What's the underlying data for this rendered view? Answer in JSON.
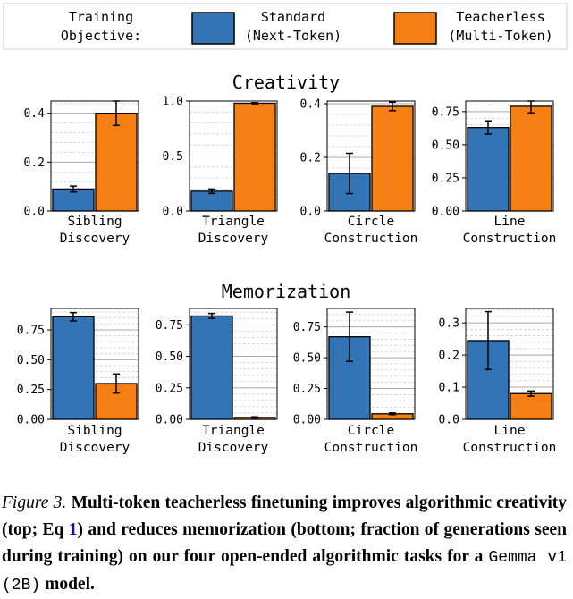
{
  "legend": {
    "label_line1": "Training",
    "label_line2": "Objective:",
    "items": [
      {
        "line1": "Standard",
        "line2": "(Next-Token)",
        "color": "#3274b5"
      },
      {
        "line1": "Teacherless",
        "line2": "(Multi-Token)",
        "color": "#f57f12"
      }
    ]
  },
  "caption": {
    "label": "Figure 3.",
    "text_a": " Multi-token teacherless finetuning improves algorithmic creativity (top; Eq ",
    "eq_ref": "1",
    "text_b": ") and reduces memorization (bottom; fraction of generations seen during training) on our four open-ended algorithmic tasks for a ",
    "model": "Gemma v1 (2B)",
    "text_c": " model."
  },
  "chart_data": [
    {
      "group_title": "Creativity",
      "panels": [
        {
          "type": "bar",
          "category_line1": "Sibling",
          "category_line2": "Discovery",
          "ylim": [
            0,
            0.45
          ],
          "yticks": [
            "0.0",
            "0.2",
            "0.4"
          ],
          "series": [
            {
              "name": "Standard (Next-Token)",
              "value": 0.09,
              "err": 0.012
            },
            {
              "name": "Teacherless (Multi-Token)",
              "value": 0.4,
              "err": 0.05
            }
          ]
        },
        {
          "type": "bar",
          "category_line1": "Triangle",
          "category_line2": "Discovery",
          "ylim": [
            0,
            1.0
          ],
          "yticks": [
            "0.0",
            "0.5",
            "1.0"
          ],
          "series": [
            {
              "name": "Standard (Next-Token)",
              "value": 0.18,
              "err": 0.02
            },
            {
              "name": "Teacherless (Multi-Token)",
              "value": 0.98,
              "err": 0.005
            }
          ]
        },
        {
          "type": "bar",
          "category_line1": "Circle",
          "category_line2": "Construction",
          "ylim": [
            0,
            0.41
          ],
          "yticks": [
            "0.0",
            "0.2",
            "0.4"
          ],
          "series": [
            {
              "name": "Standard (Next-Token)",
              "value": 0.14,
              "err": 0.075
            },
            {
              "name": "Teacherless (Multi-Token)",
              "value": 0.39,
              "err": 0.016
            }
          ]
        },
        {
          "type": "bar",
          "category_line1": "Line",
          "category_line2": "Construction",
          "ylim": [
            0,
            0.83
          ],
          "yticks": [
            "0.00",
            "0.25",
            "0.50",
            "0.75"
          ],
          "series": [
            {
              "name": "Standard (Next-Token)",
              "value": 0.63,
              "err": 0.05
            },
            {
              "name": "Teacherless (Multi-Token)",
              "value": 0.79,
              "err": 0.05
            }
          ]
        }
      ]
    },
    {
      "group_title": "Memorization",
      "panels": [
        {
          "type": "bar",
          "category_line1": "Sibling",
          "category_line2": "Discovery",
          "ylim": [
            0,
            0.93
          ],
          "yticks": [
            "0.00",
            "0.25",
            "0.50",
            "0.75"
          ],
          "series": [
            {
              "name": "Standard (Next-Token)",
              "value": 0.86,
              "err": 0.035
            },
            {
              "name": "Teacherless (Multi-Token)",
              "value": 0.3,
              "err": 0.08
            }
          ]
        },
        {
          "type": "bar",
          "category_line1": "Triangle",
          "category_line2": "Discovery",
          "ylim": [
            0,
            0.88
          ],
          "yticks": [
            "0.00",
            "0.25",
            "0.50",
            "0.75"
          ],
          "series": [
            {
              "name": "Standard (Next-Token)",
              "value": 0.82,
              "err": 0.02
            },
            {
              "name": "Teacherless (Multi-Token)",
              "value": 0.015,
              "err": 0.005
            }
          ]
        },
        {
          "type": "bar",
          "category_line1": "Circle",
          "category_line2": "Construction",
          "ylim": [
            0,
            0.9
          ],
          "yticks": [
            "0.00",
            "0.25",
            "0.50",
            "0.75"
          ],
          "series": [
            {
              "name": "Standard (Next-Token)",
              "value": 0.67,
              "err": 0.2
            },
            {
              "name": "Teacherless (Multi-Token)",
              "value": 0.045,
              "err": 0.007
            }
          ]
        },
        {
          "type": "bar",
          "category_line1": "Line",
          "category_line2": "Construction",
          "ylim": [
            0,
            0.345
          ],
          "yticks": [
            "0.0",
            "0.1",
            "0.2",
            "0.3"
          ],
          "series": [
            {
              "name": "Standard (Next-Token)",
              "value": 0.245,
              "err": 0.09
            },
            {
              "name": "Teacherless (Multi-Token)",
              "value": 0.08,
              "err": 0.008
            }
          ]
        }
      ]
    }
  ]
}
